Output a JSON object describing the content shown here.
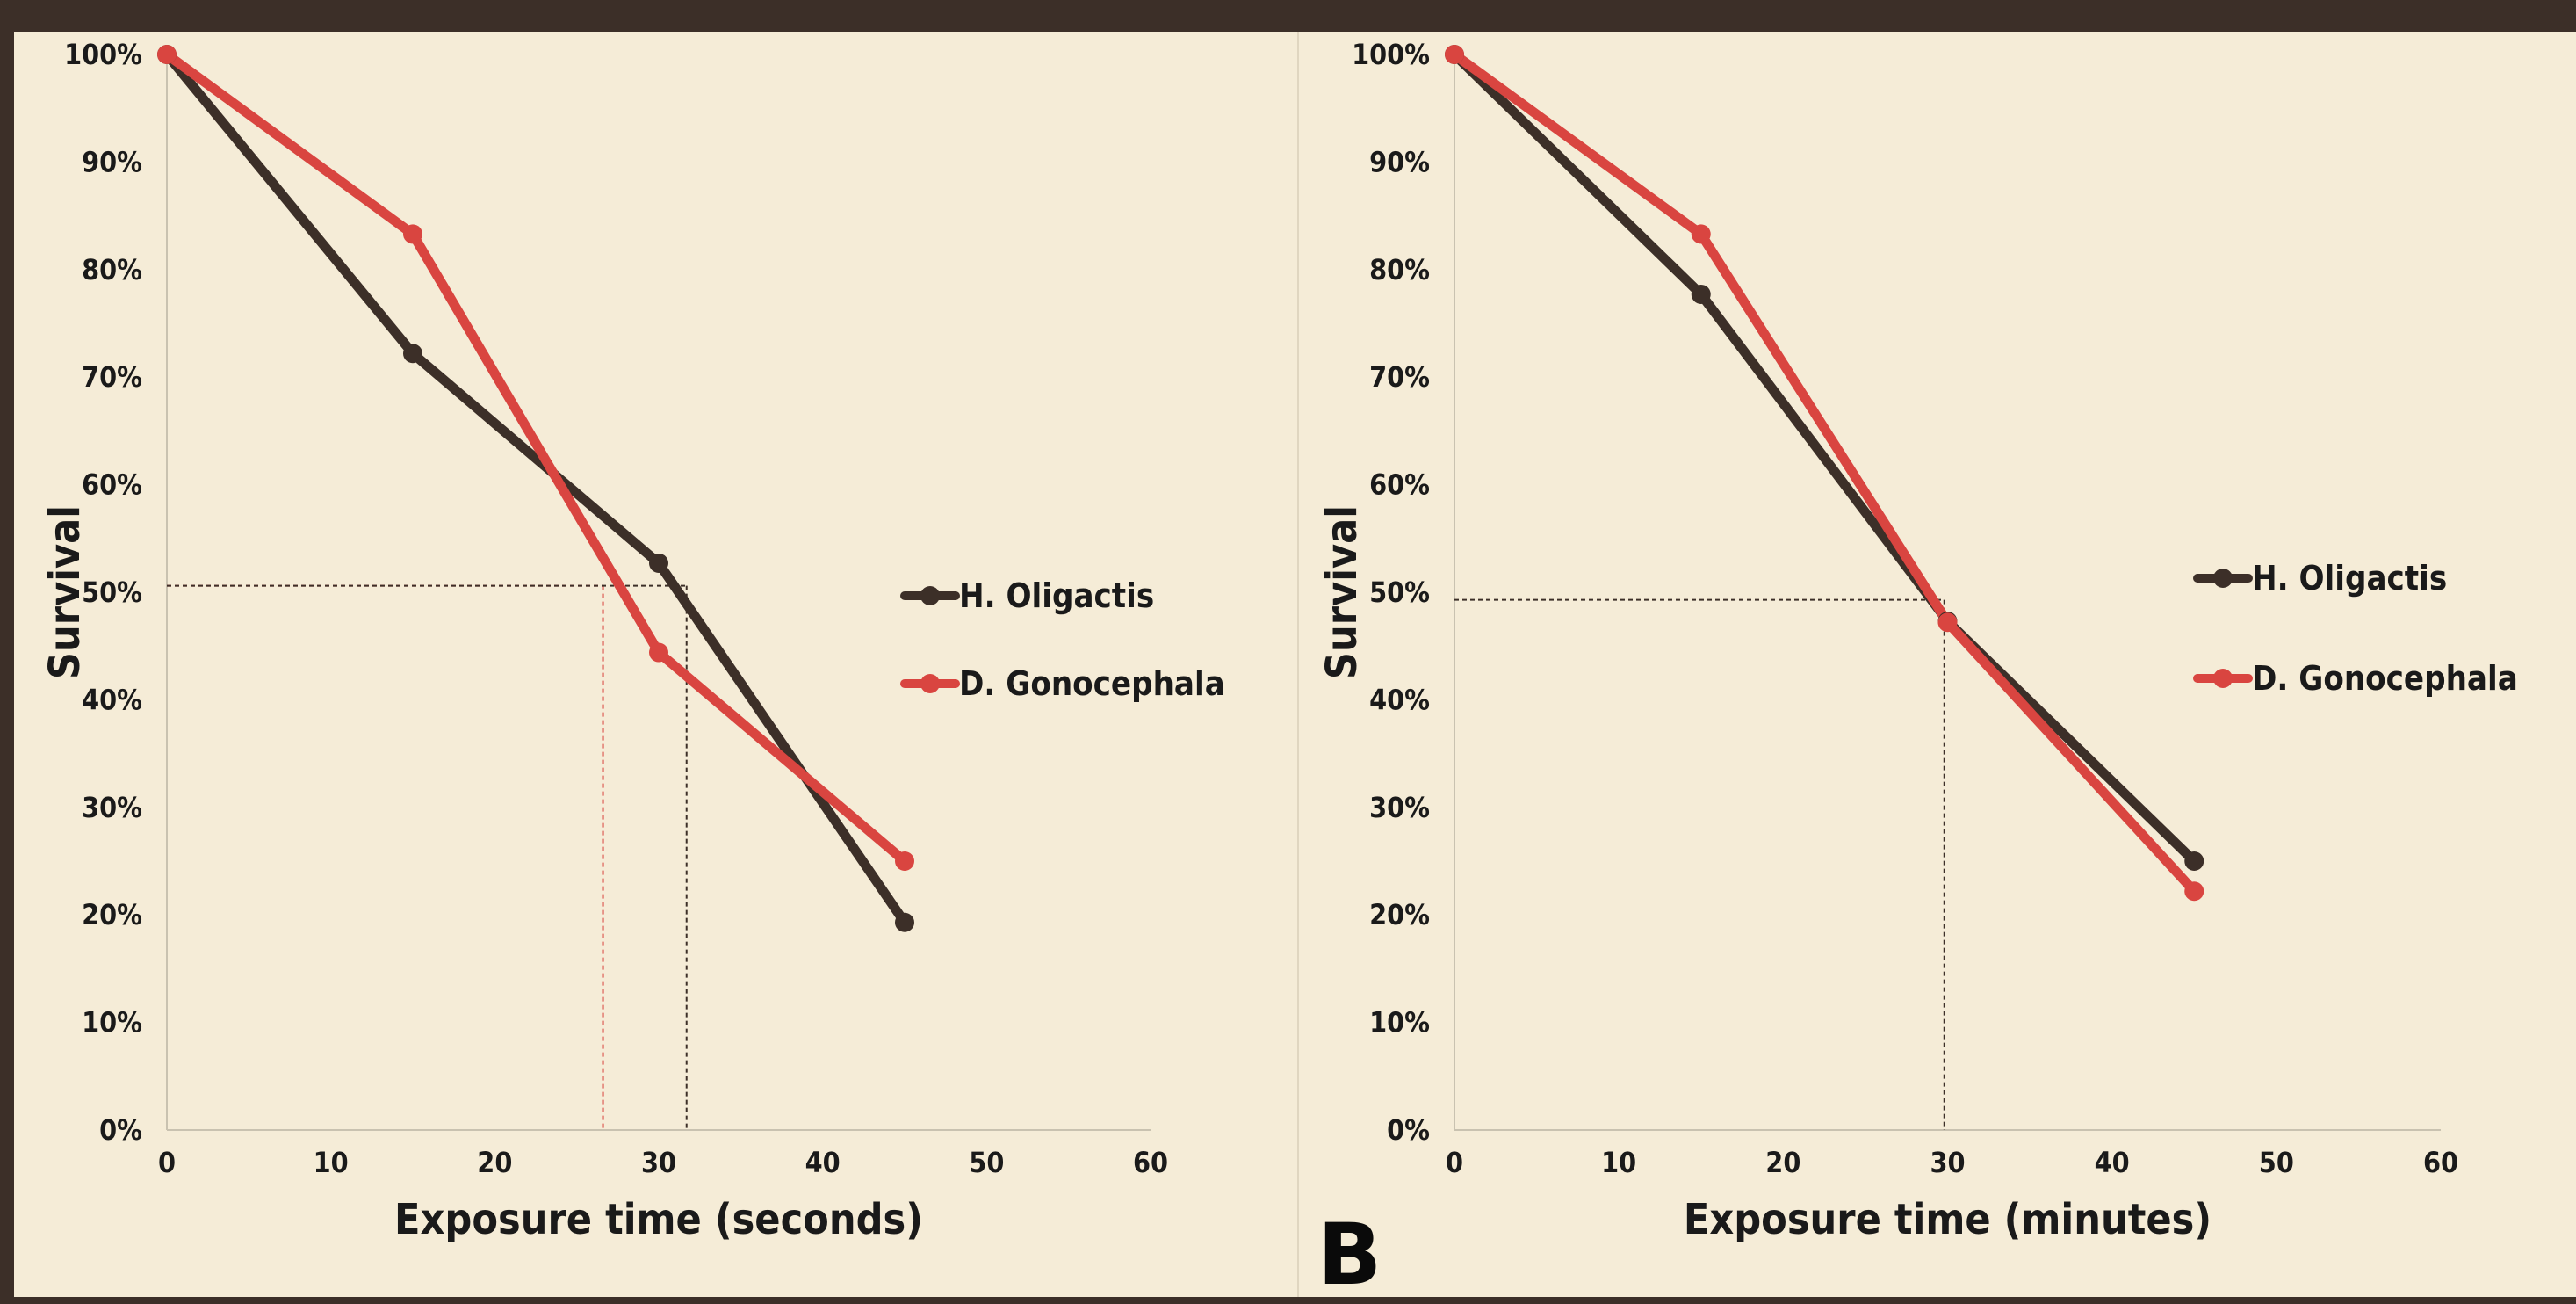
{
  "colors": {
    "background": "#f5ecd7",
    "border": "#3c2f28",
    "series_dark": "#3c2f28",
    "series_red": "#d94540",
    "axis": "#c9c2b0"
  },
  "panel_letter": "B",
  "chart_data": [
    {
      "type": "line",
      "title": "",
      "xlabel": "Exposure time (seconds)",
      "ylabel": "Survival",
      "xlim": [
        0,
        60
      ],
      "ylim": [
        0,
        100
      ],
      "xticks": [
        0,
        10,
        20,
        30,
        40,
        50,
        60
      ],
      "yticks": [
        "0%",
        "10%",
        "20%",
        "30%",
        "40%",
        "50%",
        "60%",
        "70%",
        "80%",
        "90%",
        "100%"
      ],
      "grid": false,
      "legend_position": "right",
      "series": [
        {
          "name": "H. Oligactis",
          "color": "#3c2f28",
          "x": [
            0,
            15,
            30,
            45
          ],
          "y": [
            100,
            72.2,
            52.7,
            19.3
          ]
        },
        {
          "name": "D. Gonocephala",
          "color": "#d94540",
          "x": [
            0,
            15,
            30,
            45
          ],
          "y": [
            100,
            83.3,
            44.4,
            25.0
          ]
        }
      ],
      "reference_lines": [
        {
          "color": "#d94540",
          "x": 26.6,
          "y": 50.6
        },
        {
          "color": "#3c2f28",
          "x": 31.7,
          "y": 50.6
        }
      ]
    },
    {
      "type": "line",
      "title": "",
      "xlabel": "Exposure time (minutes)",
      "ylabel": "Survival",
      "xlim": [
        0,
        60
      ],
      "ylim": [
        0,
        100
      ],
      "xticks": [
        0,
        10,
        20,
        30,
        40,
        50,
        60
      ],
      "yticks": [
        "0%",
        "10%",
        "20%",
        "30%",
        "40%",
        "50%",
        "60%",
        "70%",
        "80%",
        "90%",
        "100%"
      ],
      "grid": false,
      "legend_position": "right",
      "series": [
        {
          "name": "H. Oligactis",
          "color": "#3c2f28",
          "x": [
            0,
            15,
            30,
            45
          ],
          "y": [
            100,
            77.7,
            47.3,
            25.0
          ]
        },
        {
          "name": "D. Gonocephala",
          "color": "#d94540",
          "x": [
            0,
            15,
            30,
            45
          ],
          "y": [
            100,
            83.3,
            47.2,
            22.2
          ]
        }
      ],
      "reference_lines": [
        {
          "color": "#3c2f28",
          "x": 29.8,
          "y": 49.3
        }
      ]
    }
  ]
}
